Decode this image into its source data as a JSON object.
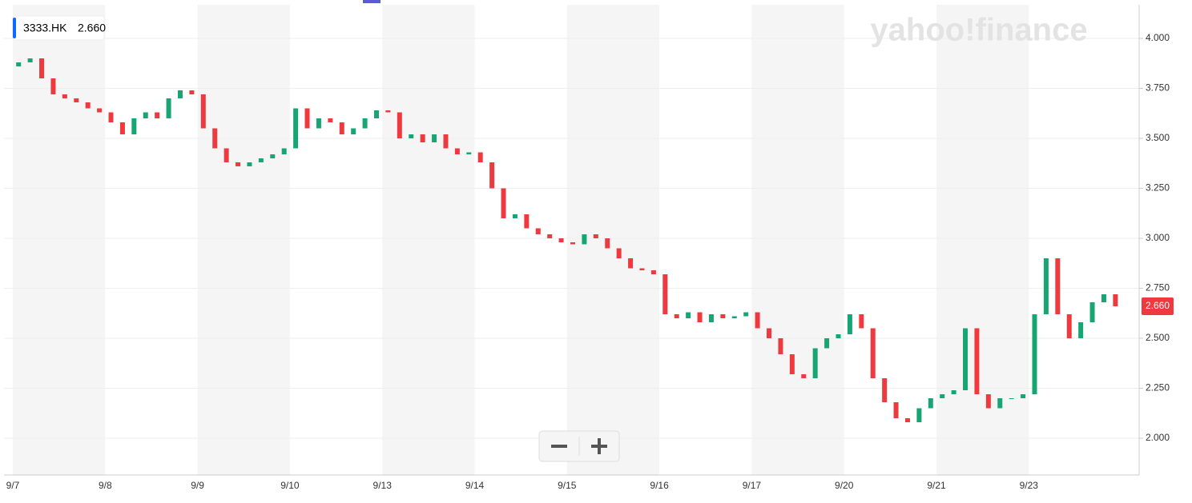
{
  "chart_data": {
    "type": "candlestick",
    "symbol": "3333.HK",
    "last": {
      "value": 2.66,
      "label": "2.660"
    },
    "watermark": "yahoo!finance",
    "categories": [
      "9/7",
      "9/8",
      "9/9",
      "9/10",
      "9/13",
      "9/14",
      "9/15",
      "9/16",
      "9/17",
      "9/20",
      "9/21",
      "9/23"
    ],
    "open": 3.86,
    "close": [
      [
        3.88,
        3.9,
        3.8,
        3.72,
        3.7,
        3.68,
        3.65,
        3.63
      ],
      [
        3.58,
        3.52,
        3.6,
        3.63,
        3.6,
        3.7,
        3.74,
        3.72
      ],
      [
        3.55,
        3.45,
        3.38,
        3.36,
        3.38,
        3.4,
        3.42,
        3.45
      ],
      [
        3.65,
        3.55,
        3.6,
        3.58,
        3.52,
        3.55,
        3.6,
        3.64
      ],
      [
        3.63,
        3.5,
        3.52,
        3.48,
        3.52,
        3.45,
        3.42,
        3.43
      ],
      [
        3.38,
        3.25,
        3.1,
        3.12,
        3.05,
        3.02,
        3.0,
        2.98
      ],
      [
        2.97,
        3.02,
        3.0,
        2.95,
        2.9,
        2.85,
        2.84,
        2.82
      ],
      [
        2.62,
        2.6,
        2.63,
        2.58,
        2.62,
        2.6,
        2.61,
        2.63
      ],
      [
        2.55,
        2.5,
        2.42,
        2.32,
        2.3,
        2.45,
        2.5,
        2.52
      ],
      [
        2.62,
        2.55,
        2.3,
        2.18,
        2.1,
        2.08,
        2.15,
        2.2
      ],
      [
        2.22,
        2.24,
        2.55,
        2.22,
        2.15,
        2.2,
        2.2,
        2.22
      ],
      [
        2.62,
        2.9,
        2.62,
        2.5,
        2.58,
        2.68,
        2.72,
        2.66
      ]
    ],
    "up_color": "#17a673",
    "down_color": "#ee3a3f",
    "ylim": [
      1.816,
      4.168
    ],
    "yticks": [
      {
        "value": 2,
        "label": "2.000"
      },
      {
        "value": 2.25,
        "label": "2.250"
      },
      {
        "value": 2.5,
        "label": "2.500"
      },
      {
        "value": 2.75,
        "label": "2.750"
      },
      {
        "value": 3,
        "label": "3.000"
      },
      {
        "value": 3.25,
        "label": "3.250"
      },
      {
        "value": 3.5,
        "label": "3.500"
      },
      {
        "value": 3.75,
        "label": "3.750"
      },
      {
        "value": 4,
        "label": "4.000"
      }
    ],
    "grid": true
  }
}
